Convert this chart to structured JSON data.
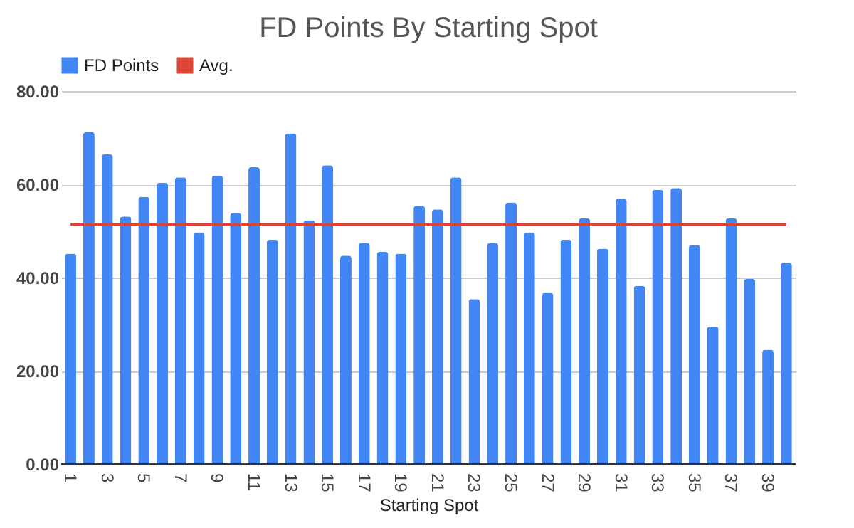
{
  "chart_data": {
    "type": "bar",
    "title": "FD Points By Starting Spot",
    "xlabel": "Starting Spot",
    "categories": [
      "1",
      null,
      "3",
      null,
      "5",
      null,
      "7",
      null,
      "9",
      null,
      "11",
      null,
      "13",
      null,
      "15",
      null,
      "17",
      null,
      "19",
      null,
      "21",
      null,
      "23",
      null,
      "25",
      null,
      "27",
      null,
      "29",
      null,
      "31",
      null,
      "33",
      null,
      "35",
      null,
      "37",
      null,
      "39",
      null
    ],
    "series": [
      {
        "name": "FD Points",
        "color": "#4285f4",
        "values": [
          45.1,
          71.2,
          66.4,
          53.1,
          57.3,
          60.3,
          61.5,
          49.7,
          61.8,
          53.8,
          63.7,
          48.1,
          70.9,
          52.3,
          64.1,
          44.7,
          47.4,
          45.5,
          45.1,
          55.4,
          54.6,
          61.5,
          35.4,
          47.4,
          56.1,
          49.7,
          36.7,
          48.1,
          52.7,
          46.2,
          56.9,
          38.2,
          58.8,
          59.2,
          47.0,
          29.5,
          52.7,
          39.7,
          24.5,
          43.2
        ]
      },
      {
        "name": "Avg.",
        "color": "#db4437",
        "type": "line",
        "values": [
          51.4,
          51.4,
          51.4,
          51.4,
          51.4,
          51.4,
          51.4,
          51.4,
          51.4,
          51.4,
          51.4,
          51.4,
          51.4,
          51.4,
          51.4,
          51.4,
          51.4,
          51.4,
          51.4,
          51.4,
          51.4,
          51.4,
          51.4,
          51.4,
          51.4,
          51.4,
          51.4,
          51.4,
          51.4,
          51.4,
          51.4,
          51.4,
          51.4,
          51.4,
          51.4,
          51.4,
          51.4,
          51.4,
          51.4,
          51.4
        ]
      }
    ],
    "ylim": [
      0,
      80
    ],
    "yticks": [
      {
        "value": 0,
        "label": "0.00"
      },
      {
        "value": 20,
        "label": "20.00"
      },
      {
        "value": 40,
        "label": "40.00"
      },
      {
        "value": 60,
        "label": "60.00"
      },
      {
        "value": 80,
        "label": "80.00"
      }
    ],
    "grid": "y",
    "legend": "top"
  }
}
